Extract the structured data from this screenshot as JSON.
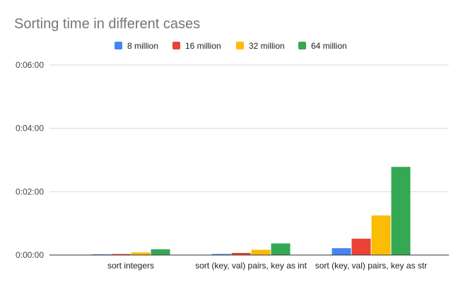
{
  "chart_data": {
    "type": "bar",
    "title": "Sorting time in different cases",
    "xlabel": "",
    "ylabel": "",
    "categories": [
      "sort integers",
      "sort (key, val) pairs, key as int",
      "sort (key, val) pairs, key as str"
    ],
    "series": [
      {
        "name": "8 million",
        "color": "#4285F4",
        "values": [
          1,
          2,
          13
        ]
      },
      {
        "name": "16 million",
        "color": "#EA4335",
        "values": [
          2,
          4,
          31
        ]
      },
      {
        "name": "32 million",
        "color": "#FBBC04",
        "values": [
          5,
          10,
          75
        ]
      },
      {
        "name": "64 million",
        "color": "#34A853",
        "values": [
          11,
          22,
          167
        ]
      }
    ],
    "value_unit": "seconds",
    "ylim": [
      0,
      360
    ],
    "yticks": [
      0,
      120,
      240,
      360
    ],
    "ytick_labels": [
      "0:00:00",
      "0:02:00",
      "0:04:00",
      "0:06:00"
    ],
    "grid": true,
    "legend_position": "top"
  }
}
